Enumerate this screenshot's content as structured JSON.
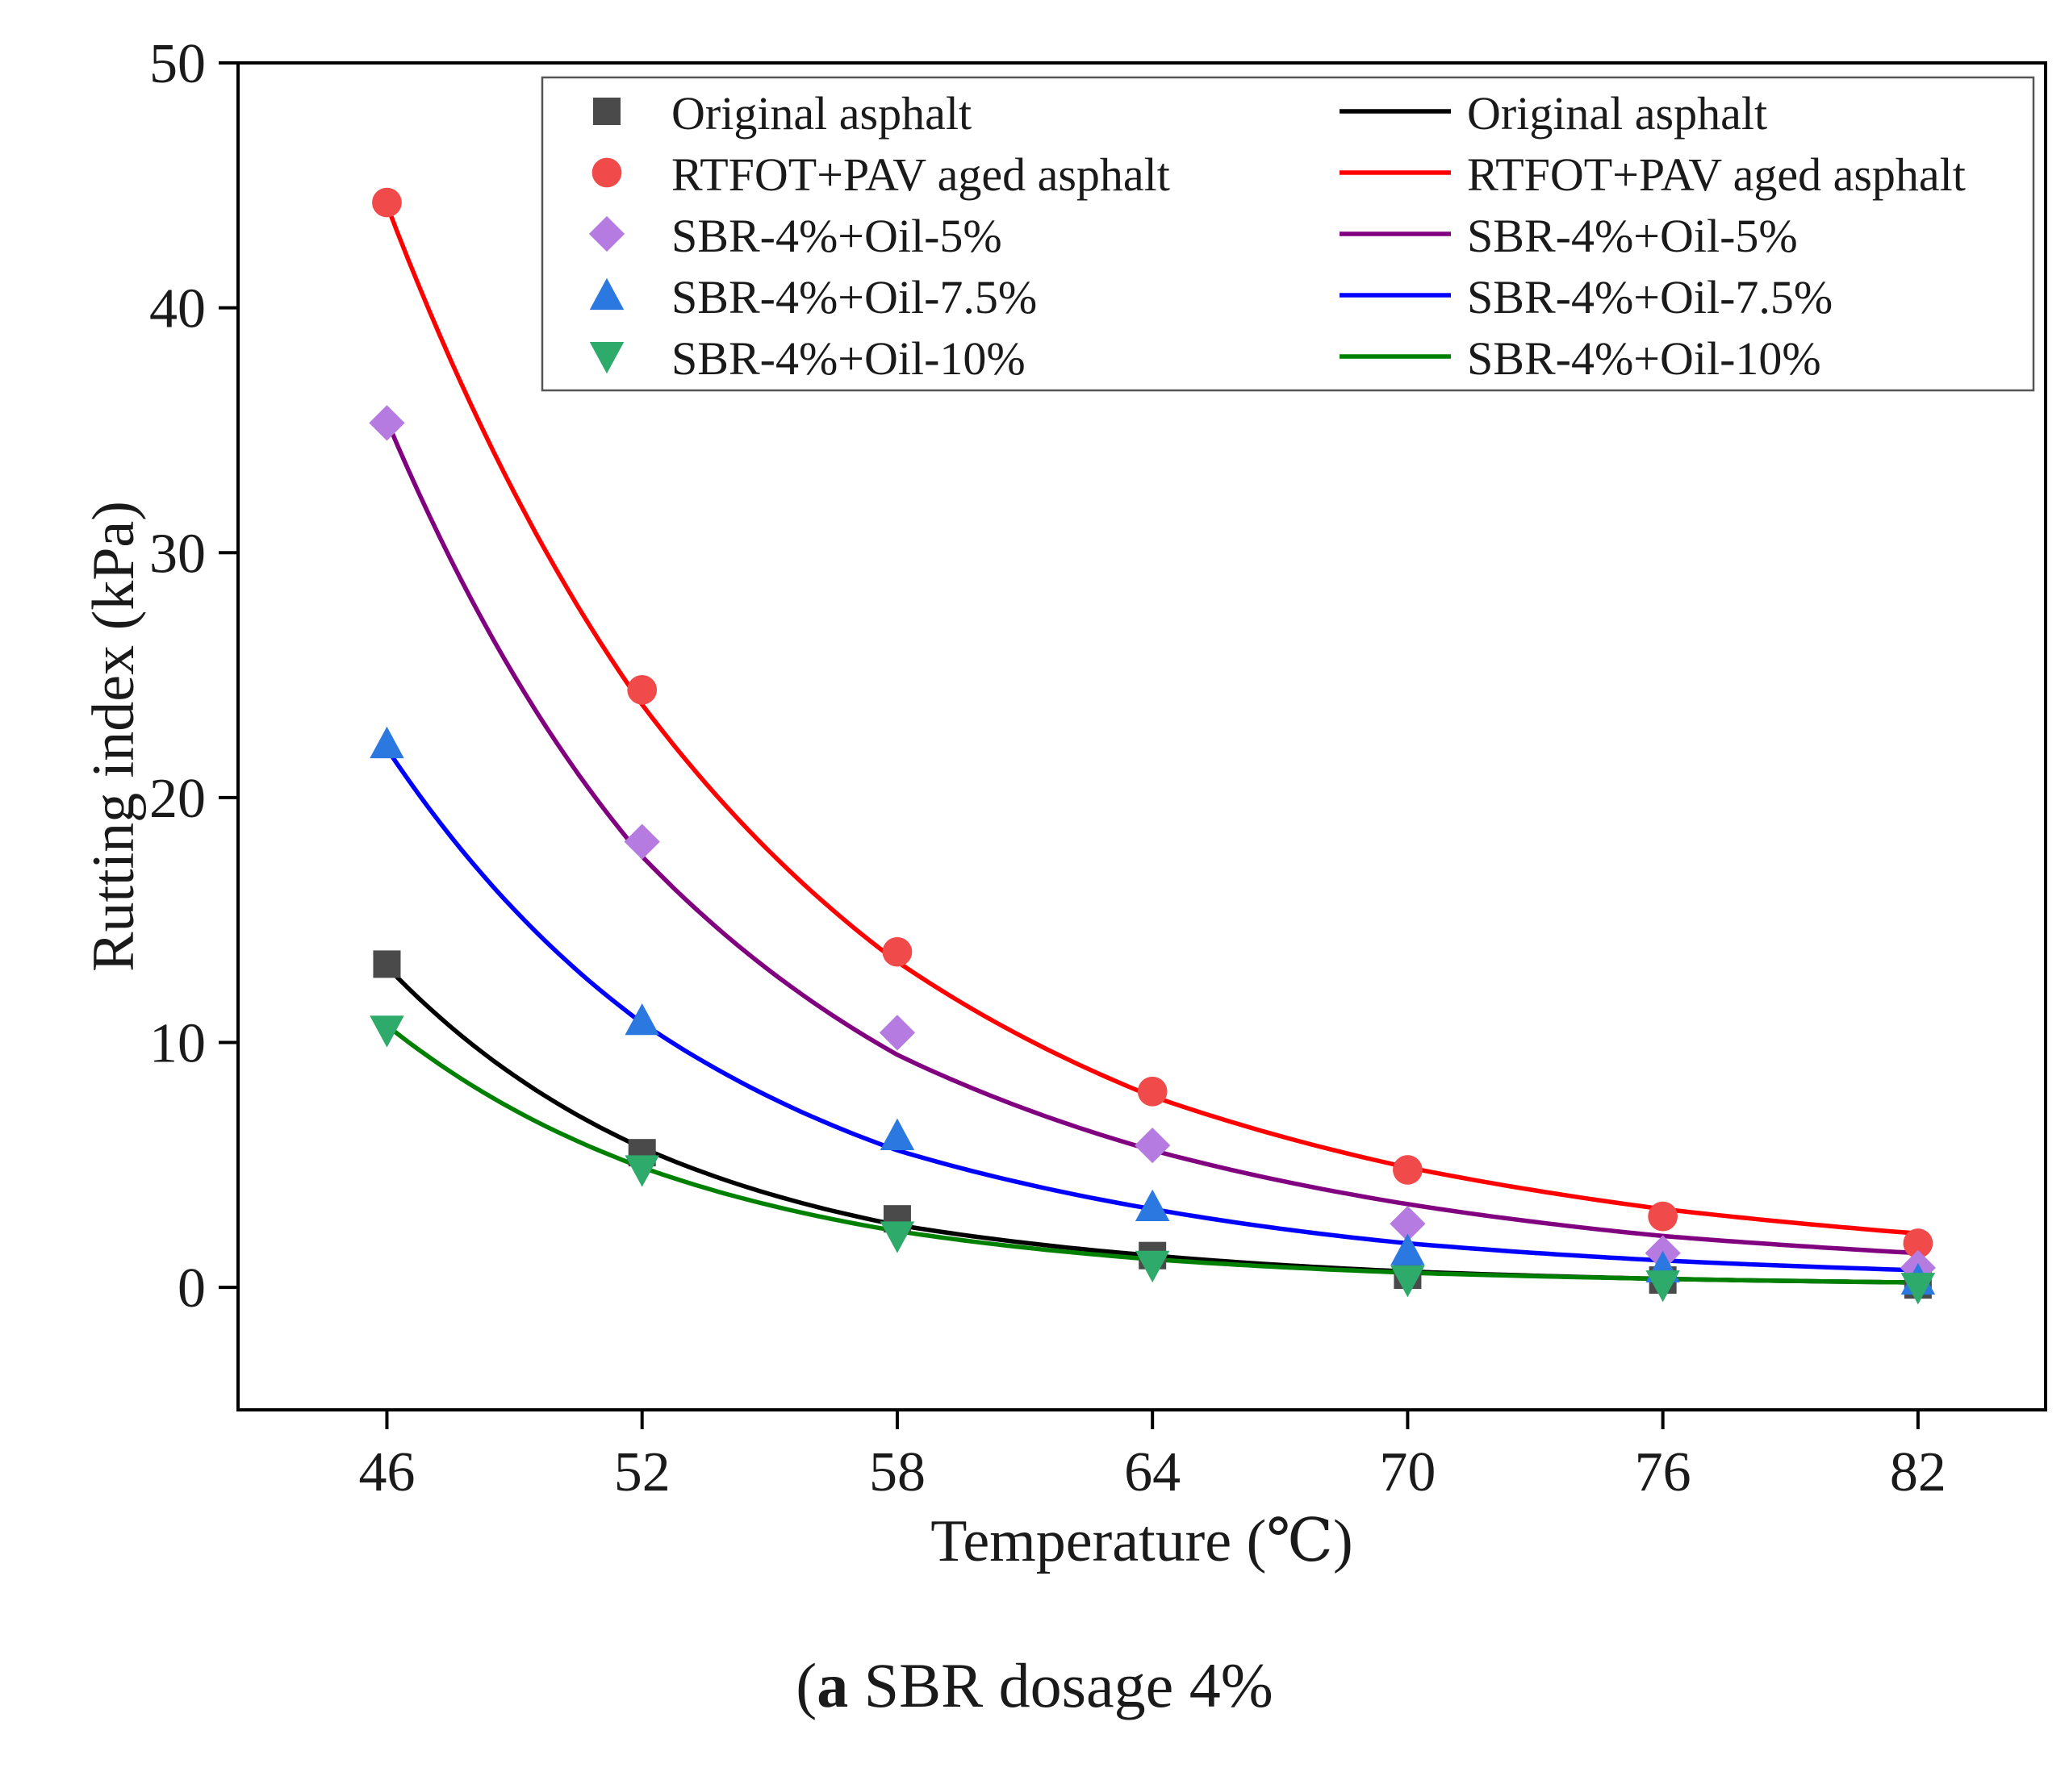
{
  "chart_data": {
    "type": "scatter",
    "title": "",
    "xlabel": "Temperature (℃)",
    "ylabel": "Rutting index (kPa)",
    "xlim": [
      42.5,
      85
    ],
    "ylim": [
      -5,
      50
    ],
    "xticks": [
      46,
      52,
      58,
      64,
      70,
      76,
      82
    ],
    "yticks": [
      0,
      10,
      20,
      30,
      40,
      50
    ],
    "x": [
      46,
      52,
      58,
      64,
      70,
      76,
      82
    ],
    "grid": false,
    "legend_position": "top-right",
    "series": [
      {
        "name": "Original asphalt",
        "marker": "square",
        "color": "#4a4a4a",
        "fit_color": "#000000",
        "values": [
          13.2,
          5.5,
          2.8,
          1.3,
          0.5,
          0.3,
          0.1
        ],
        "fit_values": [
          13.1,
          5.7,
          2.55,
          1.3,
          0.65,
          0.35,
          0.2
        ],
        "fit_label": "Original asphalt"
      },
      {
        "name": "RTFOT+PAV aged asphalt",
        "marker": "circle",
        "color": "#f04a4a",
        "fit_color": "#ff0000",
        "values": [
          44.3,
          24.4,
          13.7,
          8.0,
          4.8,
          2.9,
          1.8
        ],
        "fit_values": [
          44.2,
          23.8,
          13.3,
          7.8,
          4.9,
          3.2,
          2.2
        ],
        "fit_label": "RTFOT+PAV aged asphalt"
      },
      {
        "name": "SBR-4%+Oil-5%",
        "marker": "diamond",
        "color": "#b57be0",
        "fit_color": "#800080",
        "values": [
          35.3,
          18.2,
          10.4,
          5.8,
          2.6,
          1.4,
          0.8
        ],
        "fit_values": [
          35.4,
          17.6,
          9.5,
          5.6,
          3.4,
          2.1,
          1.4
        ],
        "fit_label": "SBR-4%+Oil-5%"
      },
      {
        "name": "SBR-4%+Oil-7.5%",
        "marker": "triangle-up",
        "color": "#2a78e0",
        "fit_color": "#0000ff",
        "values": [
          22.2,
          10.9,
          6.2,
          3.3,
          1.5,
          0.8,
          0.3
        ],
        "fit_values": [
          22.0,
          10.8,
          5.6,
          3.2,
          1.8,
          1.1,
          0.7
        ],
        "fit_label": "SBR-4%+Oil-7.5%"
      },
      {
        "name": "SBR-4%+Oil-10%",
        "marker": "triangle-down",
        "color": "#2eaa6a",
        "fit_color": "#008000",
        "values": [
          10.5,
          4.8,
          2.1,
          0.9,
          0.3,
          0.1,
          0.0
        ],
        "fit_values": [
          10.7,
          4.9,
          2.3,
          1.15,
          0.6,
          0.35,
          0.2
        ],
        "fit_label": "SBR-4%+Oil-10%"
      }
    ]
  },
  "caption": {
    "label": "a",
    "text": " SBR dosage 4%"
  }
}
